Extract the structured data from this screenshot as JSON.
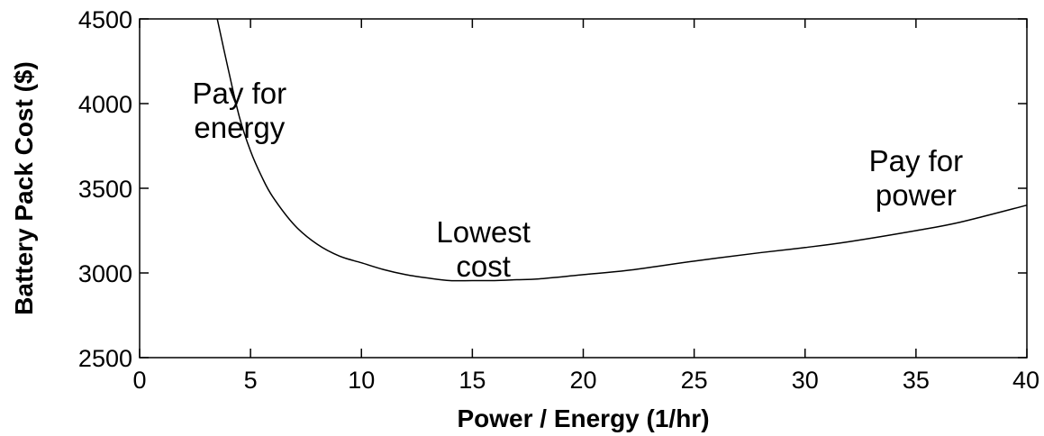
{
  "chart_data": {
    "type": "line",
    "title": "",
    "xlabel": "Power / Energy (1/hr)",
    "ylabel": "Battery Pack Cost ($)",
    "xlim": [
      0,
      40
    ],
    "ylim": [
      2500,
      4500
    ],
    "xticks": [
      0,
      5,
      10,
      15,
      20,
      25,
      30,
      35,
      40
    ],
    "yticks": [
      2500,
      3000,
      3500,
      4000,
      4500
    ],
    "grid": false,
    "series": [
      {
        "x": [
          3.5,
          4.0,
          4.5,
          5.0,
          5.5,
          6.0,
          7.0,
          8.0,
          9.0,
          10.0,
          11.0,
          12.0,
          13.0,
          14.0,
          15.0,
          16.0,
          17.0,
          18.0,
          20.0,
          22.0,
          25.0,
          28.0,
          30.0,
          32.0,
          35.0,
          37.0,
          40.0
        ],
        "values": [
          4500,
          4200,
          3920,
          3720,
          3570,
          3450,
          3280,
          3170,
          3100,
          3060,
          3020,
          2990,
          2970,
          2955,
          2955,
          2955,
          2960,
          2965,
          2990,
          3015,
          3070,
          3120,
          3150,
          3185,
          3250,
          3300,
          3400
        ],
        "color": "#000000"
      }
    ],
    "annotations": [
      {
        "lines": [
          "Pay for",
          "energy"
        ],
        "x": 4.5,
        "y": 4000
      },
      {
        "lines": [
          "Lowest",
          "cost"
        ],
        "x": 15.5,
        "y": 3180
      },
      {
        "lines": [
          "Pay for",
          "power"
        ],
        "x": 35.0,
        "y": 3600
      }
    ]
  }
}
